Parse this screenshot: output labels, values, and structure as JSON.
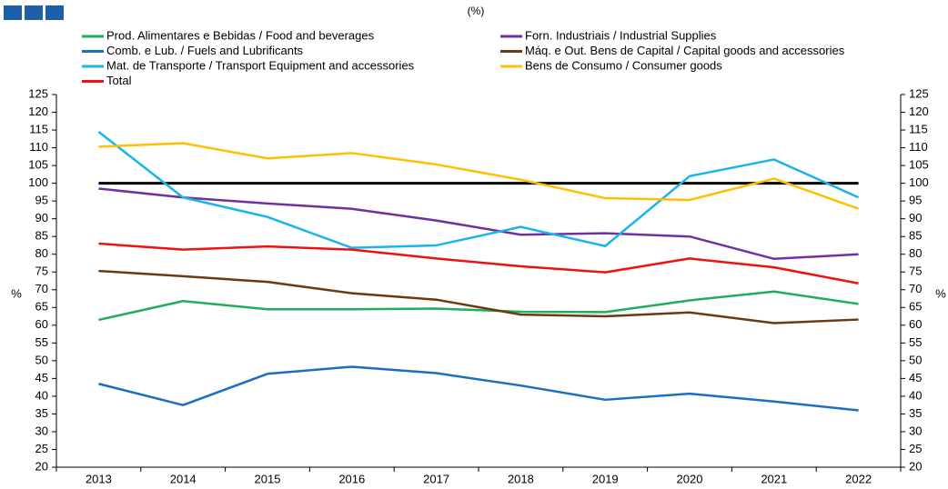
{
  "chart_data": {
    "type": "line",
    "subtitle": "(%)",
    "categories": [
      "2013",
      "2014",
      "2015",
      "2016",
      "2017",
      "2018",
      "2019",
      "2020",
      "2021",
      "2022"
    ],
    "series": [
      {
        "name": "Prod. Alimentares e Bebidas / Food and beverages",
        "color": "#1fae5a",
        "values": [
          61.5,
          66.8,
          64.5,
          64.5,
          64.7,
          63.8,
          63.7,
          67,
          69.5,
          66
        ]
      },
      {
        "name": "Forn. Industriais / Industrial Supplies",
        "color": "#7030a0",
        "values": [
          98.5,
          96,
          94.3,
          92.8,
          89.5,
          85.5,
          85.9,
          85,
          78.7,
          80
        ]
      },
      {
        "name": "Comb. e Lub. /  Fuels and Lubrificants",
        "color": "#1a6fbf",
        "values": [
          43.5,
          37.5,
          46.3,
          48.3,
          46.5,
          43,
          39,
          40.7,
          38.5,
          36
        ]
      },
      {
        "name": "Máq. e Out. Bens de Capital / Capital goods and accessories",
        "color": "#6b3a12",
        "values": [
          75.3,
          73.8,
          72.2,
          69,
          67.2,
          63,
          62.5,
          63.6,
          60.6,
          61.6
        ]
      },
      {
        "name": "Mat. de Transporte / Transport Equipment and accessories",
        "color": "#1ab3ec",
        "values": [
          114.5,
          96,
          90.5,
          81.8,
          82.5,
          87.7,
          82.3,
          102,
          106.7,
          96
        ]
      },
      {
        "name": "Bens de Consumo / Consumer goods",
        "color": "#ffc000",
        "values": [
          110.3,
          111.3,
          107,
          108.5,
          105.3,
          101,
          95.8,
          95.3,
          101.3,
          92.8
        ]
      },
      {
        "name": "Total",
        "color": "#f01010",
        "values": [
          83,
          81.3,
          82.2,
          81.3,
          78.8,
          76.6,
          74.9,
          78.8,
          76.3,
          71.8
        ]
      }
    ],
    "reference_line": 100,
    "ylabel": "%",
    "y2label": "%",
    "ylim": [
      20,
      125
    ],
    "yticks": [
      20,
      25,
      30,
      35,
      40,
      45,
      50,
      55,
      60,
      65,
      70,
      75,
      80,
      85,
      90,
      95,
      100,
      105,
      110,
      115,
      120,
      125
    ],
    "y2lim": [
      20,
      125
    ],
    "y2ticks": [
      20,
      25,
      30,
      35,
      40,
      45,
      50,
      55,
      60,
      65,
      70,
      75,
      80,
      85,
      90,
      95,
      100,
      105,
      110,
      115,
      120,
      125
    ],
    "grid": false
  }
}
